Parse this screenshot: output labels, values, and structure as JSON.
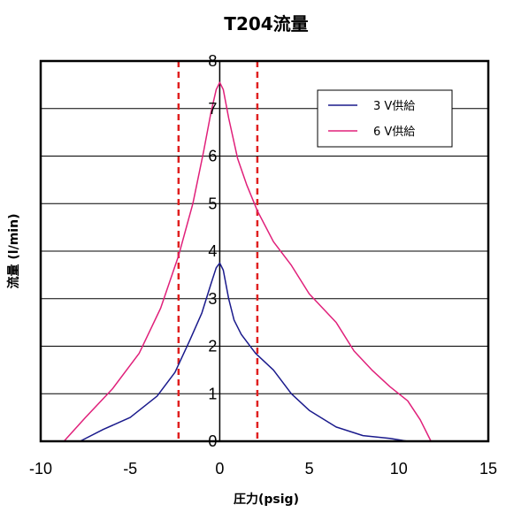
{
  "chart_data": {
    "type": "line",
    "title": "T204流量",
    "xlabel": "圧力(psig)",
    "ylabel": "流量 (l/min)",
    "xlim": [
      -10,
      15
    ],
    "ylim": [
      0,
      8
    ],
    "x_ticks": [
      "-10",
      "-5",
      "0",
      "5",
      "10",
      "15"
    ],
    "y_ticks": [
      "0",
      "1",
      "2",
      "3",
      "4",
      "5",
      "6",
      "7",
      "8"
    ],
    "grid": "horizontal",
    "legend_position": "top-right",
    "reference_lines": [
      {
        "axis": "x",
        "value": -2.3,
        "style": "dashed",
        "color": "#e02020"
      },
      {
        "axis": "x",
        "value": 2.1,
        "style": "dashed",
        "color": "#e02020"
      }
    ],
    "series": [
      {
        "name": "3 V供給",
        "color": "#1a1a8c",
        "points": [
          [
            -7.8,
            0.0
          ],
          [
            -6.5,
            0.25
          ],
          [
            -5.0,
            0.5
          ],
          [
            -3.5,
            0.95
          ],
          [
            -2.5,
            1.45
          ],
          [
            -1.7,
            2.1
          ],
          [
            -1.0,
            2.7
          ],
          [
            -0.5,
            3.3
          ],
          [
            -0.2,
            3.65
          ],
          [
            0.0,
            3.75
          ],
          [
            0.2,
            3.6
          ],
          [
            0.5,
            3.0
          ],
          [
            0.8,
            2.55
          ],
          [
            1.2,
            2.25
          ],
          [
            2.0,
            1.85
          ],
          [
            3.0,
            1.5
          ],
          [
            4.0,
            1.0
          ],
          [
            5.0,
            0.65
          ],
          [
            6.5,
            0.3
          ],
          [
            8.0,
            0.12
          ],
          [
            9.5,
            0.06
          ],
          [
            10.5,
            0.0
          ]
        ]
      },
      {
        "name": "6 V供給",
        "color": "#e0207a",
        "points": [
          [
            -8.7,
            0.0
          ],
          [
            -7.5,
            0.5
          ],
          [
            -6.0,
            1.1
          ],
          [
            -4.5,
            1.85
          ],
          [
            -3.3,
            2.8
          ],
          [
            -2.3,
            3.9
          ],
          [
            -1.5,
            5.0
          ],
          [
            -0.9,
            6.1
          ],
          [
            -0.5,
            6.9
          ],
          [
            -0.2,
            7.4
          ],
          [
            0.0,
            7.55
          ],
          [
            0.2,
            7.4
          ],
          [
            0.5,
            6.8
          ],
          [
            1.0,
            5.95
          ],
          [
            1.5,
            5.4
          ],
          [
            2.1,
            4.85
          ],
          [
            3.0,
            4.2
          ],
          [
            4.0,
            3.7
          ],
          [
            5.0,
            3.1
          ],
          [
            6.5,
            2.5
          ],
          [
            7.5,
            1.9
          ],
          [
            8.5,
            1.5
          ],
          [
            9.5,
            1.15
          ],
          [
            10.5,
            0.85
          ],
          [
            11.2,
            0.45
          ],
          [
            11.8,
            0.0
          ]
        ]
      }
    ]
  }
}
